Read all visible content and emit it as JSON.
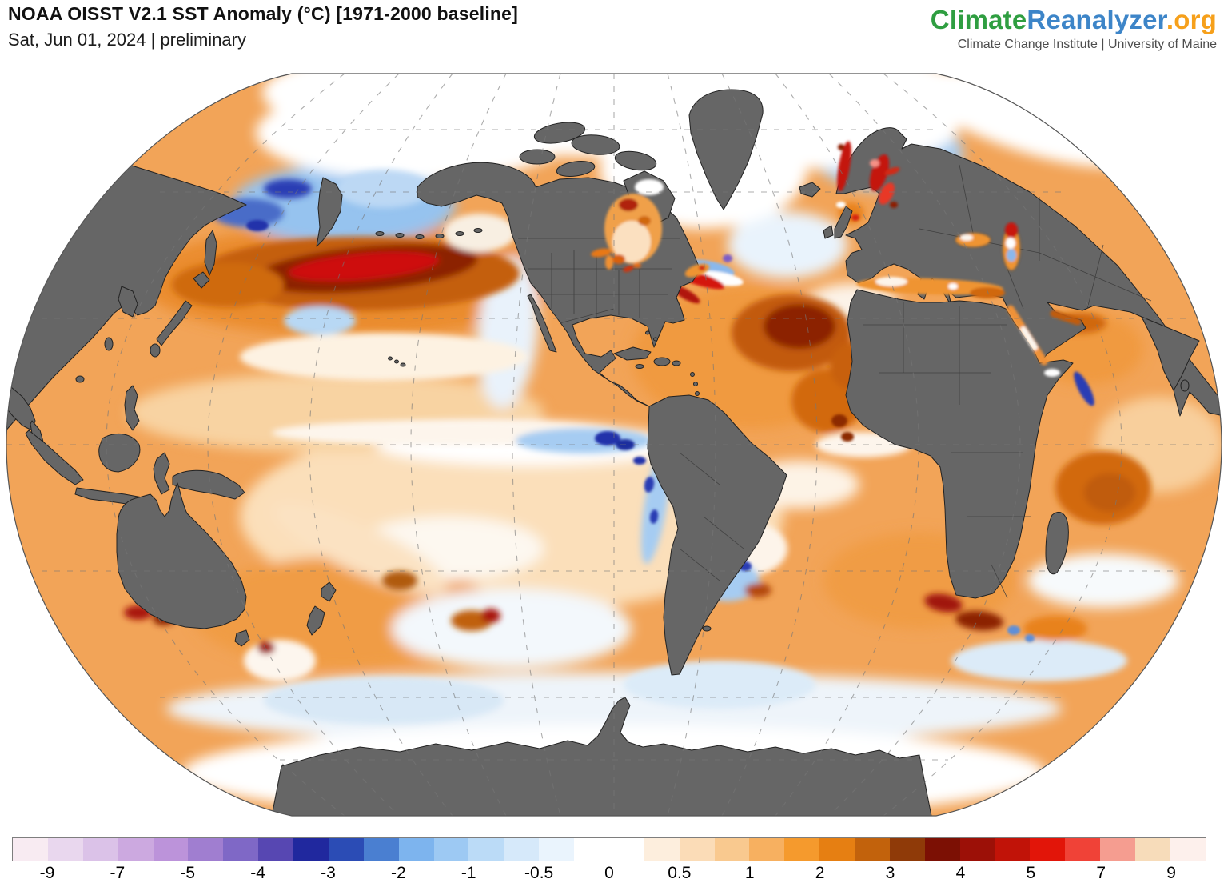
{
  "header": {
    "title": "NOAA OISST V2.1 SST Anomaly (°C) [1971-2000 baseline]",
    "subtitle": "Sat, Jun 01, 2024 | preliminary"
  },
  "logo": {
    "part1": "Climate",
    "part2": "Reanalyzer",
    "part3": ".org",
    "tagline": "Climate Change Institute | University of Maine",
    "colors": {
      "part1": "#2f9e41",
      "part2": "#3d85c8",
      "part3": "#f6a01b"
    }
  },
  "colorbar": {
    "unit": "°C",
    "ticks": [
      "-9",
      "-7",
      "-5",
      "-4",
      "-3",
      "-2",
      "-1",
      "-0.5",
      "0",
      "0.5",
      "1",
      "2",
      "3",
      "4",
      "5",
      "7",
      "9"
    ],
    "segments": [
      "#f8ebf2",
      "#e9d7ee",
      "#dbc2e8",
      "#cca9e0",
      "#bc93da",
      "#a07ed0",
      "#7f68c6",
      "#5747b2",
      "#20289e",
      "#2b4cb5",
      "#4a7fd1",
      "#7db4ee",
      "#9dc9f3",
      "#bbdbf7",
      "#d6e9fa",
      "#eaf4fd",
      "#ffffff",
      "#ffffff",
      "#fdeedd",
      "#fbdcb7",
      "#f9c98f",
      "#f7b060",
      "#f59a2d",
      "#e67f12",
      "#c2620c",
      "#8f3a08",
      "#7c1004",
      "#9c1007",
      "#c11308",
      "#e21509",
      "#f04237",
      "#f59d90",
      "#f7dcba",
      "#fdf0ec"
    ],
    "border_color": "#7e7e7e"
  },
  "map": {
    "projection": "robinson-style world map centered near 90°W",
    "land_color": "#666666",
    "coast_color": "#222222",
    "no_data_color": "#ffffff",
    "gridline_color": "#777777",
    "ocean_base_anomaly": "+0.5 to +1 °C (orange)",
    "features": [
      {
        "name": "north-pacific-marine-heatwave",
        "anomaly": "+3 to +5 °C",
        "color": "#ce0e09"
      },
      {
        "name": "bering-okhotsk-cool-patch",
        "anomaly": "-1 to -3 °C",
        "color": "#96c3ef"
      },
      {
        "name": "equatorial-pacific-cold-tongue",
        "anomaly": "-0.5 to -3 °C",
        "color": "#a6ccf2"
      },
      {
        "name": "peru-coast-cold-strip",
        "anomaly": "-2 to -4 °C",
        "color": "#2b3cb4"
      },
      {
        "name": "north-atlantic-warm-pool",
        "anomaly": "+2 to +4 °C",
        "color": "#8c2206"
      },
      {
        "name": "gulf-stream-mixed-eddies",
        "anomaly": "-3 to +4 °C",
        "color": "#8ab8ec"
      },
      {
        "name": "baltic-sea-extreme-warm",
        "anomaly": "+4 to +7 °C",
        "color": "#e21509"
      },
      {
        "name": "mediterranean-warm",
        "anomaly": "+1 to +2 °C",
        "color": "#ef9430"
      },
      {
        "name": "indian-ocean-warm",
        "anomaly": "+1 to +2 °C",
        "color": "#f09a40"
      },
      {
        "name": "agulhas-warm-eddies",
        "anomaly": "+3 to +5 °C",
        "color": "#a01208"
      },
      {
        "name": "southern-ocean-mixed-band",
        "anomaly": "-1 to +1 °C",
        "color": "#dcebf8"
      },
      {
        "name": "polar-ice-no-data",
        "anomaly": "no data / ice",
        "color": "#ffffff"
      }
    ],
    "gridlines": {
      "meridian_spacing_deg": 30,
      "parallel_spacing_deg": 30,
      "style": "dashed"
    }
  }
}
